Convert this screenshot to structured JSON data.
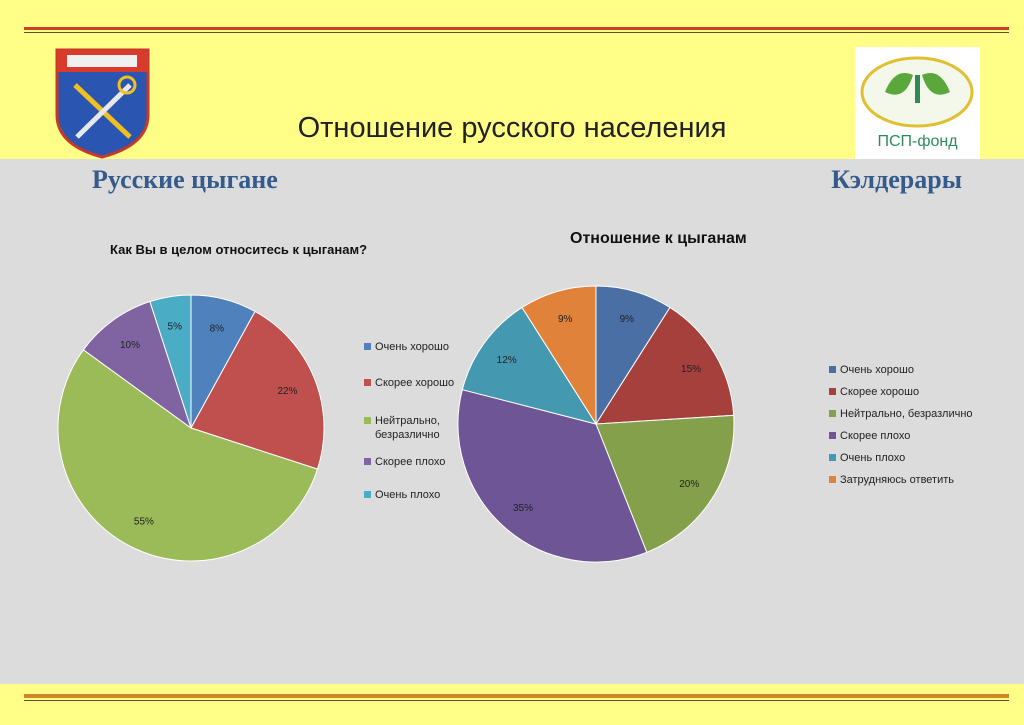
{
  "slide": {
    "title": "Отношение русского населения",
    "left_section": "Русские цыгане",
    "right_section": "Кэлдерары",
    "logo_text": "ПСП-фонд"
  },
  "chart_data": [
    {
      "type": "pie",
      "title": "Как Вы в целом относитесь к цыганам?",
      "categories": [
        "Очень хорошо",
        "Скорее хорошо",
        "Нейтрально, безразлично",
        "Скорее плохо",
        "Очень плохо"
      ],
      "legend_labels": [
        "Очень хорошо",
        "Скорее хорошо",
        "Нейтрально,",
        "безразлично",
        "Скорее плохо",
        "Очень плохо"
      ],
      "values": [
        8,
        22,
        55,
        10,
        5
      ],
      "data_labels": [
        "8%",
        "22%",
        "55%",
        "10%",
        "5%"
      ],
      "colors": [
        "#4f81bd",
        "#c0504d",
        "#9bbb59",
        "#8064a2",
        "#4bacc6"
      ],
      "legend_position": "right"
    },
    {
      "type": "pie",
      "title": "Отношение к цыганам",
      "categories": [
        "Очень хорошо",
        "Скорее хорошо",
        "Нейтрально, безразлично",
        "Скорее плохо",
        "Очень плохо",
        "Затрудняюсь ответить"
      ],
      "values": [
        9,
        15,
        20,
        35,
        12,
        9
      ],
      "data_labels": [
        "9%",
        "15%",
        "20%",
        "35%",
        "12%",
        "9%"
      ],
      "colors": [
        "#4a6fa5",
        "#a5403d",
        "#84a04a",
        "#6e5596",
        "#4499b0",
        "#e0823a"
      ],
      "legend_position": "right"
    }
  ]
}
